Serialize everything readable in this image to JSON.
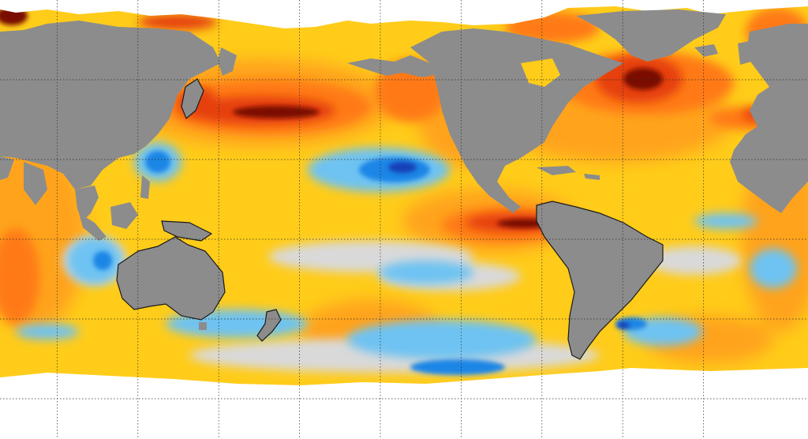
{
  "map": {
    "projection": "equirectangular",
    "colors": {
      "land": "#8c8c8c",
      "ice": "#ffffff",
      "coastline": "#1a1a1a",
      "graticule": "#2a2a2a",
      "ocean_base": "#ffcc1a",
      "warm_light": "#ffa31a",
      "warm": "#ff7a12",
      "warm_strong": "#e5400c",
      "warm_extreme": "#7a1006",
      "neutral": "#d9d9d9",
      "cool": "#6ec3f2",
      "cool_strong": "#1f86e6",
      "cool_extreme": "#1640b8"
    },
    "layers": [
      "sea-surface-anomaly-field",
      "land-mask",
      "sea-ice-mask",
      "coastlines",
      "graticule"
    ],
    "grid": true
  }
}
